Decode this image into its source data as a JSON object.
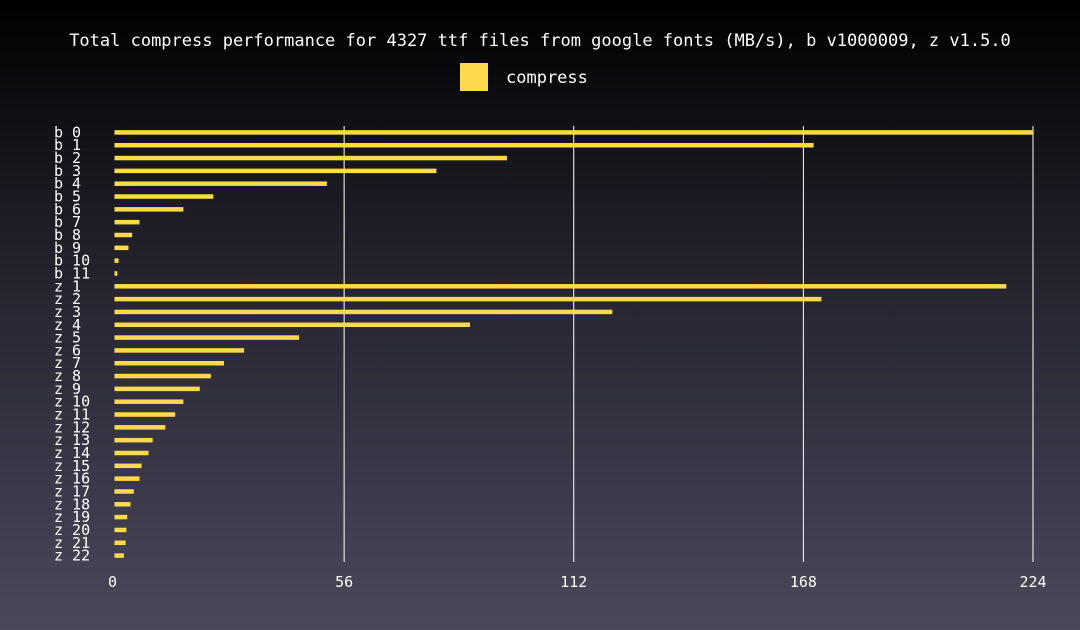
{
  "chart_data": {
    "type": "bar",
    "orientation": "horizontal",
    "title": "Total compress performance for 4327 ttf files from google fonts (MB/s), b v1000009, z v1.5.0",
    "xlabel": "",
    "ylabel": "",
    "xlim": [
      0,
      224
    ],
    "xticks": [
      0,
      56,
      112,
      168,
      224
    ],
    "grid": "vertical",
    "legend_position": "top-center",
    "series": [
      {
        "name": "compress",
        "color": "#fdd94d",
        "values": [
          224,
          170.5,
          95.7,
          78.5,
          51.8,
          24.1,
          16.8,
          6.1,
          4.3,
          3.4,
          1.0,
          0.7,
          217.5,
          172.4,
          121.4,
          86.7,
          45.0,
          31.6,
          26.7,
          23.5,
          20.8,
          16.8,
          14.8,
          12.4,
          9.3,
          8.3,
          6.6,
          6.1,
          4.7,
          3.9,
          3.1,
          2.9,
          2.7,
          2.3
        ]
      }
    ],
    "categories": [
      "b 0",
      "b 1",
      "b 2",
      "b 3",
      "b 4",
      "b 5",
      "b 6",
      "b 7",
      "b 8",
      "b 9",
      "b 10",
      "b 11",
      "z 1",
      "z 2",
      "z 3",
      "z 4",
      "z 5",
      "z 6",
      "z 7",
      "z 8",
      "z 9",
      "z 10",
      "z 11",
      "z 12",
      "z 13",
      "z 14",
      "z 15",
      "z 16",
      "z 17",
      "z 18",
      "z 19",
      "z 20",
      "z 21",
      "z 22"
    ]
  }
}
